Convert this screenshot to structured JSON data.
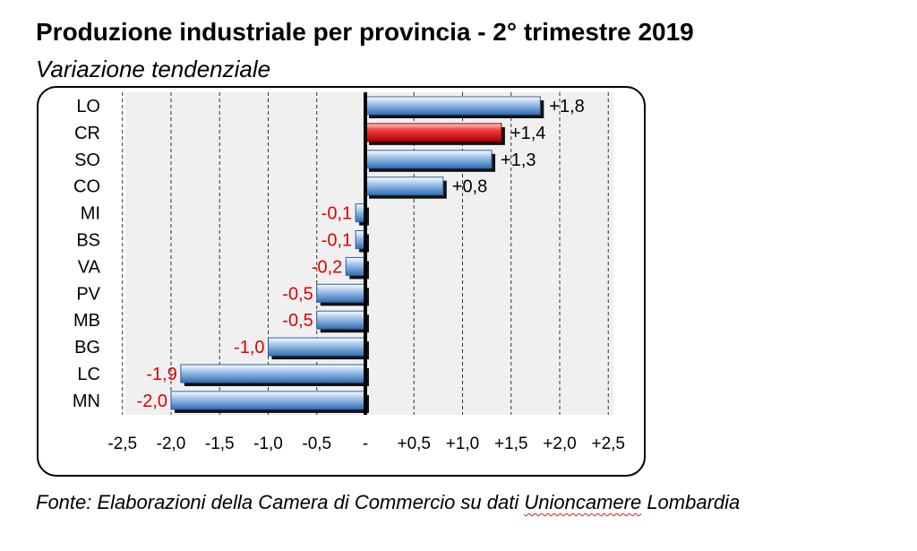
{
  "title": "Produzione industriale per provincia - 2° trimestre 2019",
  "subtitle": "Variazione tendenziale",
  "footer": {
    "prefix": "Fonte: Elaborazioni della Camera di Commercio su dati ",
    "underlined": "Unioncamere",
    "suffix": " Lombardia"
  },
  "chart_data": {
    "type": "bar",
    "orientation": "horizontal",
    "categories": [
      "LO",
      "CR",
      "SO",
      "CO",
      "MI",
      "BS",
      "VA",
      "PV",
      "MB",
      "BG",
      "LC",
      "MN"
    ],
    "values": [
      1.8,
      1.4,
      1.3,
      0.8,
      -0.1,
      -0.1,
      -0.2,
      -0.5,
      -0.5,
      -1.0,
      -1.9,
      -2.0
    ],
    "value_labels": [
      "+1,8",
      "+1,4",
      "+1,3",
      "+0,8",
      "-0,1",
      "-0,1",
      "-0,2",
      "-0,5",
      "-0,5",
      "-1,0",
      "-1,9",
      "-2,0"
    ],
    "xlim": [
      -2.5,
      2.5
    ],
    "xticks": [
      -2.5,
      -2.0,
      -1.5,
      -1.0,
      -0.5,
      0,
      0.5,
      1.0,
      1.5,
      2.0,
      2.5
    ],
    "xtick_labels": [
      "-2,5",
      "-2,0",
      "-1,5",
      "-1,0",
      "-0,5",
      "-",
      "+0,5",
      "+1,0",
      "+1,5",
      "+2,0",
      "+2,5"
    ],
    "grid": "vertical dashed",
    "highlight_category": "CR",
    "colors": {
      "bar": "#4a86c8",
      "highlight_bar": "#e02020",
      "positive_label": "#000000",
      "negative_label": "#e00000",
      "plot_background": "#f0f0f0"
    }
  }
}
